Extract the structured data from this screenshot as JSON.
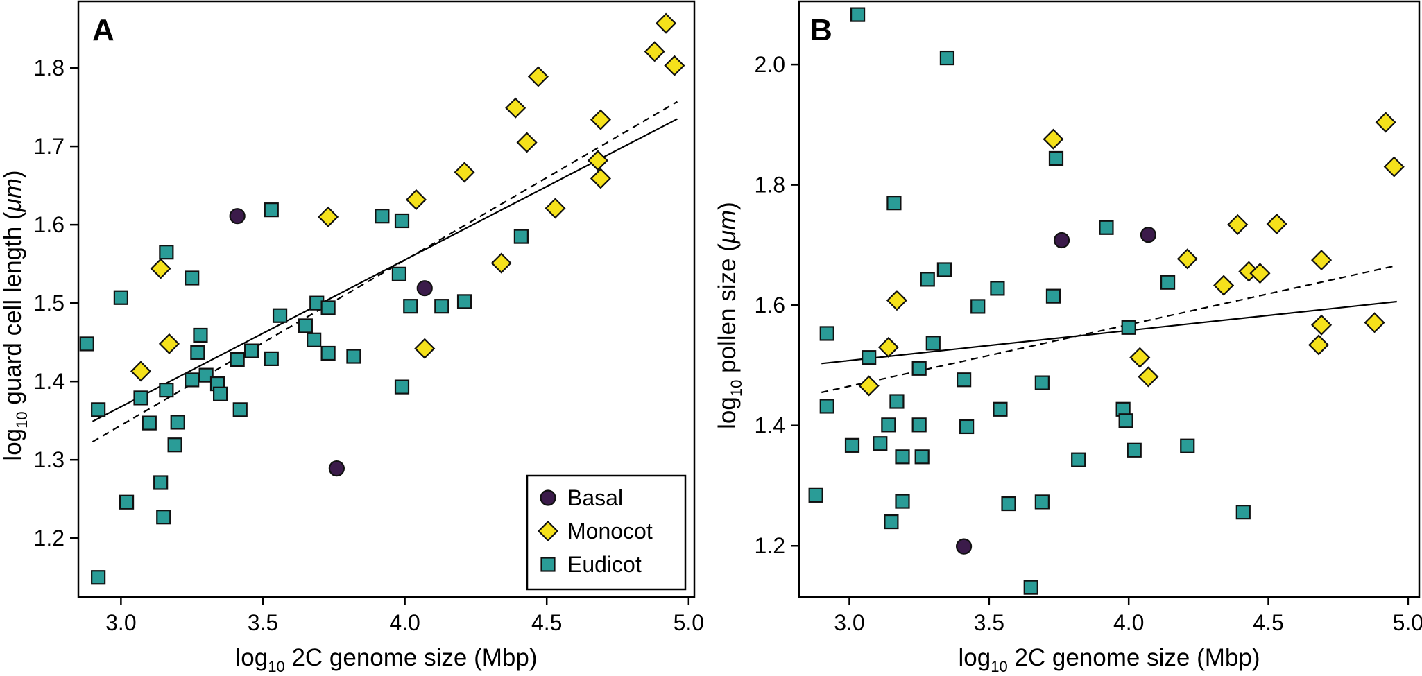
{
  "legend": {
    "entries": [
      {
        "name": "Basal",
        "shape": "circle",
        "color": "#3b1b4a"
      },
      {
        "name": "Monocot",
        "shape": "diamond",
        "color": "#f5e11b"
      },
      {
        "name": "Eudicot",
        "shape": "square",
        "color": "#2a9c97"
      }
    ],
    "placement": "bottom-right of panel A"
  },
  "colors": {
    "basal": "#3b1b4a",
    "monocot": "#f5e11b",
    "eudicot": "#2a9c97",
    "stroke": "#111111"
  },
  "chart_data": [
    {
      "type": "scatter",
      "panel": "A",
      "xlabel": {
        "prefix": "log",
        "sub": "10",
        "rest": " 2C genome size (Mbp)"
      },
      "ylabel": {
        "prefix": "log",
        "sub": "10",
        "rest": " guard cell length (",
        "italic": "μm",
        "suffix": ")"
      },
      "xlim": [
        2.85,
        5.02
      ],
      "ylim": [
        1.125,
        1.885
      ],
      "xticks": [
        3.0,
        3.5,
        4.0,
        4.5,
        5.0
      ],
      "xtick_labels": [
        "3.0",
        "3.5",
        "4.0",
        "4.5",
        "5.0"
      ],
      "yticks": [
        1.2,
        1.3,
        1.4,
        1.5,
        1.6,
        1.7,
        1.8
      ],
      "ytick_labels": [
        "1.2",
        "1.3",
        "1.4",
        "1.5",
        "1.6",
        "1.7",
        "1.8"
      ],
      "grid": false,
      "series": [
        {
          "name": "Basal",
          "shape": "circle",
          "points": [
            [
              3.41,
              1.611
            ],
            [
              4.07,
              1.519
            ],
            [
              3.76,
              1.289
            ]
          ]
        },
        {
          "name": "Monocot",
          "shape": "diamond",
          "points": [
            [
              4.92,
              1.857
            ],
            [
              4.88,
              1.821
            ],
            [
              4.95,
              1.803
            ],
            [
              4.47,
              1.789
            ],
            [
              4.39,
              1.749
            ],
            [
              4.69,
              1.734
            ],
            [
              4.43,
              1.705
            ],
            [
              4.68,
              1.682
            ],
            [
              4.69,
              1.659
            ],
            [
              4.21,
              1.667
            ],
            [
              4.04,
              1.632
            ],
            [
              4.53,
              1.621
            ],
            [
              3.73,
              1.61
            ],
            [
              4.34,
              1.551
            ],
            [
              3.14,
              1.544
            ],
            [
              3.17,
              1.448
            ],
            [
              4.07,
              1.442
            ],
            [
              3.07,
              1.413
            ]
          ]
        },
        {
          "name": "Eudicot",
          "shape": "square",
          "points": [
            [
              3.53,
              1.619
            ],
            [
              3.92,
              1.611
            ],
            [
              3.99,
              1.605
            ],
            [
              3.16,
              1.565
            ],
            [
              4.41,
              1.585
            ],
            [
              3.98,
              1.537
            ],
            [
              3.25,
              1.532
            ],
            [
              3.0,
              1.507
            ],
            [
              3.69,
              1.5
            ],
            [
              4.21,
              1.502
            ],
            [
              4.02,
              1.496
            ],
            [
              4.13,
              1.496
            ],
            [
              3.73,
              1.494
            ],
            [
              3.56,
              1.484
            ],
            [
              3.65,
              1.471
            ],
            [
              3.28,
              1.459
            ],
            [
              3.68,
              1.453
            ],
            [
              2.88,
              1.448
            ],
            [
              3.46,
              1.439
            ],
            [
              3.27,
              1.437
            ],
            [
              3.73,
              1.436
            ],
            [
              3.53,
              1.429
            ],
            [
              3.82,
              1.432
            ],
            [
              3.41,
              1.428
            ],
            [
              3.3,
              1.408
            ],
            [
              3.25,
              1.402
            ],
            [
              3.34,
              1.397
            ],
            [
              3.99,
              1.393
            ],
            [
              3.16,
              1.389
            ],
            [
              3.35,
              1.384
            ],
            [
              3.07,
              1.379
            ],
            [
              2.92,
              1.364
            ],
            [
              3.42,
              1.364
            ],
            [
              3.1,
              1.347
            ],
            [
              3.2,
              1.348
            ],
            [
              3.19,
              1.319
            ],
            [
              3.14,
              1.271
            ],
            [
              3.02,
              1.246
            ],
            [
              3.15,
              1.227
            ],
            [
              2.92,
              1.15
            ]
          ]
        }
      ],
      "fit_lines": [
        {
          "style": "solid",
          "x": [
            2.9,
            4.96
          ],
          "y": [
            1.349,
            1.735
          ]
        },
        {
          "style": "dashed",
          "x": [
            2.9,
            4.96
          ],
          "y": [
            1.323,
            1.757
          ]
        }
      ]
    },
    {
      "type": "scatter",
      "panel": "B",
      "xlabel": {
        "prefix": "log",
        "sub": "10",
        "rest": " 2C genome size (Mbp)"
      },
      "ylabel": {
        "prefix": "log",
        "sub": "10",
        "rest": " pollen size (",
        "italic": "μm",
        "suffix": ")"
      },
      "xlim": [
        2.82,
        5.04
      ],
      "ylim": [
        1.115,
        2.105
      ],
      "xticks": [
        3.0,
        3.5,
        4.0,
        4.5,
        5.0
      ],
      "xtick_labels": [
        "3.0",
        "3.5",
        "4.0",
        "4.5",
        "5.0"
      ],
      "yticks": [
        1.2,
        1.4,
        1.6,
        1.8,
        2.0
      ],
      "ytick_labels": [
        "1.2",
        "1.4",
        "1.6",
        "1.8",
        "2.0"
      ],
      "grid": false,
      "series": [
        {
          "name": "Basal",
          "shape": "circle",
          "points": [
            [
              3.76,
              1.708
            ],
            [
              4.07,
              1.717
            ],
            [
              3.41,
              1.199
            ]
          ]
        },
        {
          "name": "Monocot",
          "shape": "diamond",
          "points": [
            [
              4.92,
              1.904
            ],
            [
              4.95,
              1.83
            ],
            [
              3.73,
              1.876
            ],
            [
              4.39,
              1.734
            ],
            [
              4.53,
              1.735
            ],
            [
              4.21,
              1.677
            ],
            [
              4.69,
              1.675
            ],
            [
              4.43,
              1.656
            ],
            [
              4.47,
              1.653
            ],
            [
              4.34,
              1.633
            ],
            [
              3.17,
              1.608
            ],
            [
              4.88,
              1.571
            ],
            [
              4.69,
              1.567
            ],
            [
              4.68,
              1.534
            ],
            [
              3.14,
              1.53
            ],
            [
              4.04,
              1.513
            ],
            [
              4.07,
              1.481
            ],
            [
              3.07,
              1.466
            ]
          ]
        },
        {
          "name": "Eudicot",
          "shape": "square",
          "points": [
            [
              3.03,
              2.083
            ],
            [
              3.35,
              2.011
            ],
            [
              3.74,
              1.844
            ],
            [
              3.16,
              1.77
            ],
            [
              3.92,
              1.729
            ],
            [
              3.34,
              1.659
            ],
            [
              3.28,
              1.643
            ],
            [
              4.14,
              1.638
            ],
            [
              3.53,
              1.628
            ],
            [
              3.73,
              1.615
            ],
            [
              3.46,
              1.598
            ],
            [
              4.0,
              1.563
            ],
            [
              2.92,
              1.553
            ],
            [
              3.3,
              1.537
            ],
            [
              3.07,
              1.513
            ],
            [
              3.25,
              1.495
            ],
            [
              3.41,
              1.476
            ],
            [
              3.69,
              1.471
            ],
            [
              3.17,
              1.44
            ],
            [
              2.92,
              1.432
            ],
            [
              3.98,
              1.427
            ],
            [
              3.54,
              1.427
            ],
            [
              3.99,
              1.408
            ],
            [
              3.14,
              1.401
            ],
            [
              3.25,
              1.401
            ],
            [
              3.42,
              1.398
            ],
            [
              3.11,
              1.37
            ],
            [
              3.01,
              1.367
            ],
            [
              4.21,
              1.366
            ],
            [
              4.02,
              1.359
            ],
            [
              3.19,
              1.348
            ],
            [
              3.26,
              1.348
            ],
            [
              3.82,
              1.343
            ],
            [
              2.88,
              1.284
            ],
            [
              3.19,
              1.274
            ],
            [
              3.69,
              1.273
            ],
            [
              3.57,
              1.27
            ],
            [
              4.41,
              1.256
            ],
            [
              3.15,
              1.24
            ],
            [
              3.65,
              1.131
            ]
          ]
        }
      ],
      "fit_lines": [
        {
          "style": "solid",
          "x": [
            2.9,
            4.96
          ],
          "y": [
            1.503,
            1.606
          ]
        },
        {
          "style": "dashed",
          "x": [
            2.9,
            4.96
          ],
          "y": [
            1.455,
            1.666
          ]
        }
      ]
    }
  ],
  "panels": [
    {
      "letter": "A"
    },
    {
      "letter": "B"
    }
  ]
}
